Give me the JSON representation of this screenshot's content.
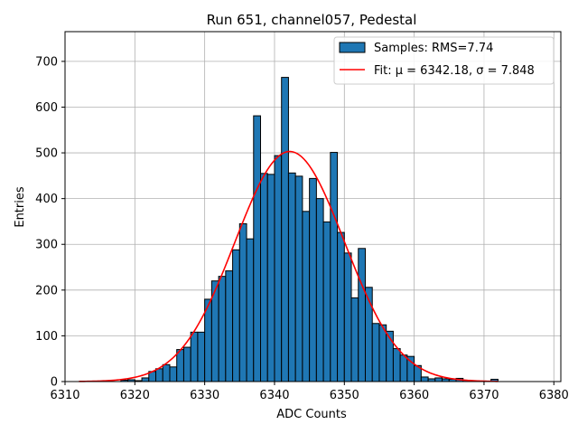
{
  "chart_data": {
    "type": "bar",
    "title": "Run 651, channel057, Pedestal",
    "xlabel": "ADC Counts",
    "ylabel": "Entries",
    "xlim": [
      6310,
      6381
    ],
    "ylim": [
      0,
      765
    ],
    "xticks": [
      6310,
      6320,
      6330,
      6340,
      6350,
      6360,
      6370,
      6380
    ],
    "yticks": [
      0,
      100,
      200,
      300,
      400,
      500,
      600,
      700
    ],
    "grid": true,
    "legend_position": "top-right",
    "bar_color": "#1f77b4",
    "fit_color": "#ff0000",
    "histogram": {
      "name": "Samples: RMS=7.74",
      "bin_width": 1.0,
      "bins": [
        {
          "x": 6318.5,
          "y": 3
        },
        {
          "x": 6319.5,
          "y": 4
        },
        {
          "x": 6320.5,
          "y": 2
        },
        {
          "x": 6321.5,
          "y": 8
        },
        {
          "x": 6322.5,
          "y": 22
        },
        {
          "x": 6323.5,
          "y": 28
        },
        {
          "x": 6324.5,
          "y": 37
        },
        {
          "x": 6325.5,
          "y": 32
        },
        {
          "x": 6326.5,
          "y": 70
        },
        {
          "x": 6327.5,
          "y": 75
        },
        {
          "x": 6328.5,
          "y": 108
        },
        {
          "x": 6329.5,
          "y": 108
        },
        {
          "x": 6330.5,
          "y": 180
        },
        {
          "x": 6331.5,
          "y": 220
        },
        {
          "x": 6332.5,
          "y": 230
        },
        {
          "x": 6333.5,
          "y": 242
        },
        {
          "x": 6334.5,
          "y": 288
        },
        {
          "x": 6335.5,
          "y": 345
        },
        {
          "x": 6336.5,
          "y": 312
        },
        {
          "x": 6337.5,
          "y": 581
        },
        {
          "x": 6338.5,
          "y": 455
        },
        {
          "x": 6339.5,
          "y": 453
        },
        {
          "x": 6340.5,
          "y": 494
        },
        {
          "x": 6341.5,
          "y": 665
        },
        {
          "x": 6342.5,
          "y": 456
        },
        {
          "x": 6343.5,
          "y": 449
        },
        {
          "x": 6344.5,
          "y": 372
        },
        {
          "x": 6345.5,
          "y": 444
        },
        {
          "x": 6346.5,
          "y": 400
        },
        {
          "x": 6347.5,
          "y": 349
        },
        {
          "x": 6348.5,
          "y": 501
        },
        {
          "x": 6349.5,
          "y": 326
        },
        {
          "x": 6350.5,
          "y": 281
        },
        {
          "x": 6351.5,
          "y": 183
        },
        {
          "x": 6352.5,
          "y": 291
        },
        {
          "x": 6353.5,
          "y": 206
        },
        {
          "x": 6354.5,
          "y": 127
        },
        {
          "x": 6355.5,
          "y": 124
        },
        {
          "x": 6356.5,
          "y": 110
        },
        {
          "x": 6357.5,
          "y": 72
        },
        {
          "x": 6358.5,
          "y": 58
        },
        {
          "x": 6359.5,
          "y": 55
        },
        {
          "x": 6360.5,
          "y": 35
        },
        {
          "x": 6361.5,
          "y": 10
        },
        {
          "x": 6362.5,
          "y": 6
        },
        {
          "x": 6363.5,
          "y": 8
        },
        {
          "x": 6364.5,
          "y": 6
        },
        {
          "x": 6365.5,
          "y": 5
        },
        {
          "x": 6366.5,
          "y": 7
        },
        {
          "x": 6367.5,
          "y": 3
        },
        {
          "x": 6368.5,
          "y": 2
        },
        {
          "x": 6369.5,
          "y": 1
        },
        {
          "x": 6370.5,
          "y": 1
        },
        {
          "x": 6371.5,
          "y": 5
        }
      ]
    },
    "fit": {
      "name": "Fit: μ = 6342.18, σ = 7.848",
      "type": "gaussian",
      "mu": 6342.18,
      "sigma": 7.848,
      "amplitude": 503,
      "x_range": [
        6312,
        6372
      ]
    }
  }
}
